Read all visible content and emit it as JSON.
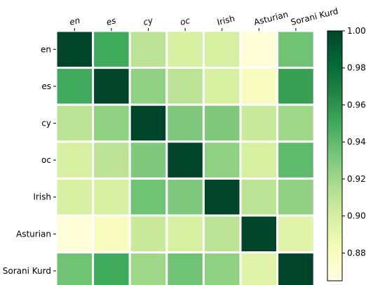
{
  "chart_data": {
    "type": "heatmap",
    "title": "",
    "xlabel": "",
    "ylabel": "",
    "column_labels": [
      "en",
      "es",
      "cy",
      "oc",
      "Irish",
      "Asturian",
      "Sorani Kurd"
    ],
    "column_label_italic": [
      true,
      true,
      true,
      true,
      false,
      false,
      false
    ],
    "row_labels": [
      "en",
      "es",
      "cy",
      "oc",
      "Irish",
      "Asturian",
      "Sorani Kurd"
    ],
    "values": [
      [
        1.0,
        0.95,
        0.91,
        0.9,
        0.9,
        0.87,
        0.935
      ],
      [
        0.95,
        1.0,
        0.925,
        0.91,
        0.9,
        0.88,
        0.955
      ],
      [
        0.91,
        0.925,
        1.0,
        0.93,
        0.93,
        0.905,
        0.92
      ],
      [
        0.9,
        0.91,
        0.93,
        1.0,
        0.925,
        0.9,
        0.94
      ],
      [
        0.9,
        0.9,
        0.935,
        0.93,
        1.0,
        0.91,
        0.925
      ],
      [
        0.87,
        0.88,
        0.905,
        0.9,
        0.91,
        1.0,
        0.895
      ],
      [
        0.935,
        0.95,
        0.92,
        0.935,
        0.925,
        0.895,
        1.0
      ]
    ],
    "colorbar": {
      "min": 0.865,
      "max": 1.0,
      "ticks": [
        0.88,
        0.9,
        0.92,
        0.94,
        0.96,
        0.98,
        1.0
      ],
      "tick_labels": [
        "0.88",
        "0.90",
        "0.92",
        "0.94",
        "0.96",
        "0.98",
        "1.00"
      ],
      "colormap": "YlGn",
      "colormap_stops": [
        "#ffffe5",
        "#f7fcb9",
        "#d9f0a3",
        "#addd8e",
        "#78c679",
        "#41ab5d",
        "#238443",
        "#006837",
        "#004529"
      ]
    },
    "cell_border_color": "#ffffff",
    "grid": false
  }
}
